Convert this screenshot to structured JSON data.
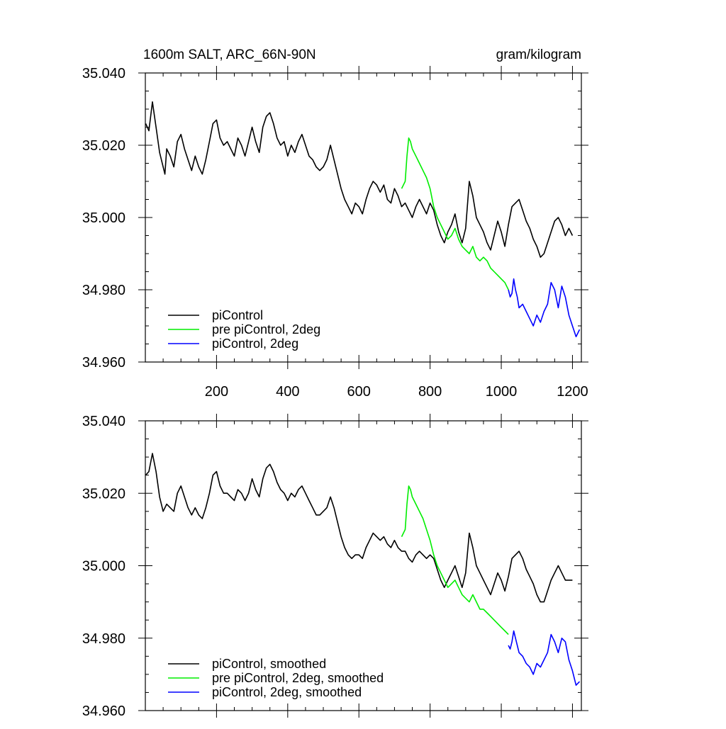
{
  "header": {
    "title": "1600m SALT, ARC_66N-90N",
    "units": "gram/kilogram"
  },
  "chart_data": [
    {
      "type": "line",
      "title": "1600m SALT, ARC_66N-90N",
      "units": "gram/kilogram",
      "xlim": [
        0,
        1225
      ],
      "ylim": [
        34.96,
        35.04
      ],
      "x_ticks": [
        200,
        400,
        600,
        800,
        1000,
        1200
      ],
      "x_tick_labels": [
        "200",
        "400",
        "600",
        "800",
        "1000",
        "1200"
      ],
      "y_ticks": [
        34.96,
        34.98,
        35.0,
        35.02,
        35.04
      ],
      "y_tick_labels": [
        "34.960",
        "34.980",
        "35.000",
        "35.020",
        "35.040"
      ],
      "legend_position": "bottom-left",
      "series": [
        {
          "name": "piControl",
          "color": "#000000",
          "x": [
            1,
            10,
            20,
            30,
            40,
            50,
            55,
            60,
            70,
            80,
            90,
            100,
            110,
            120,
            130,
            140,
            150,
            160,
            170,
            180,
            190,
            200,
            210,
            220,
            230,
            240,
            250,
            260,
            270,
            280,
            290,
            300,
            310,
            320,
            330,
            340,
            350,
            360,
            370,
            380,
            390,
            400,
            410,
            420,
            430,
            440,
            450,
            460,
            470,
            480,
            490,
            500,
            510,
            520,
            530,
            540,
            550,
            560,
            570,
            580,
            590,
            600,
            610,
            620,
            630,
            640,
            650,
            660,
            670,
            680,
            690,
            700,
            710,
            720,
            730,
            740,
            750,
            760,
            770,
            780,
            790,
            800,
            810,
            820,
            830,
            840,
            850,
            860,
            870,
            880,
            890,
            900,
            910,
            920,
            930,
            940,
            950,
            960,
            970,
            980,
            990,
            1000,
            1010,
            1020,
            1030,
            1040,
            1050,
            1060,
            1070,
            1080,
            1090,
            1100,
            1110,
            1120,
            1130,
            1140,
            1150,
            1160,
            1170,
            1180,
            1190,
            1200
          ],
          "y": [
            35.026,
            35.024,
            35.032,
            35.025,
            35.018,
            35.014,
            35.012,
            35.019,
            35.017,
            35.014,
            35.021,
            35.023,
            35.019,
            35.016,
            35.013,
            35.017,
            35.014,
            35.012,
            35.016,
            35.021,
            35.026,
            35.027,
            35.022,
            35.02,
            35.021,
            35.019,
            35.017,
            35.022,
            35.02,
            35.017,
            35.021,
            35.025,
            35.021,
            35.018,
            35.025,
            35.028,
            35.029,
            35.026,
            35.022,
            35.02,
            35.021,
            35.017,
            35.02,
            35.018,
            35.021,
            35.023,
            35.02,
            35.017,
            35.016,
            35.014,
            35.013,
            35.014,
            35.016,
            35.02,
            35.016,
            35.012,
            35.008,
            35.005,
            35.003,
            35.001,
            35.004,
            35.003,
            35.001,
            35.005,
            35.008,
            35.01,
            35.009,
            35.007,
            35.009,
            35.005,
            35.004,
            35.008,
            35.006,
            35.003,
            35.004,
            35.002,
            35.0,
            35.003,
            35.005,
            35.003,
            35.001,
            35.004,
            35.002,
            34.998,
            34.995,
            34.993,
            34.996,
            34.998,
            35.001,
            34.996,
            34.993,
            34.997,
            35.01,
            35.006,
            35.0,
            34.998,
            34.996,
            34.993,
            34.991,
            34.995,
            34.999,
            34.996,
            34.992,
            34.998,
            35.003,
            35.004,
            35.005,
            35.002,
            34.999,
            34.997,
            34.994,
            34.992,
            34.989,
            34.99,
            34.993,
            34.996,
            34.999,
            35.0,
            34.998,
            34.995,
            34.997,
            34.995
          ]
        },
        {
          "name": "pre piControl, 2deg",
          "color": "#00ee00",
          "x": [
            720,
            730,
            735,
            740,
            745,
            750,
            760,
            770,
            780,
            790,
            800,
            810,
            820,
            830,
            840,
            850,
            860,
            870,
            880,
            890,
            900,
            910,
            920,
            930,
            940,
            950,
            960,
            970,
            980,
            990,
            1000,
            1010,
            1020
          ],
          "y": [
            35.008,
            35.01,
            35.017,
            35.022,
            35.021,
            35.019,
            35.017,
            35.015,
            35.013,
            35.011,
            35.008,
            35.003,
            35.0,
            34.998,
            34.996,
            34.994,
            34.995,
            34.997,
            34.994,
            34.992,
            34.991,
            34.99,
            34.992,
            34.989,
            34.988,
            34.989,
            34.988,
            34.986,
            34.985,
            34.984,
            34.983,
            34.982,
            34.98
          ]
        },
        {
          "name": "piControl, 2deg",
          "color": "#0000ff",
          "x": [
            1020,
            1025,
            1030,
            1035,
            1040,
            1045,
            1050,
            1060,
            1070,
            1080,
            1090,
            1100,
            1110,
            1120,
            1130,
            1140,
            1150,
            1160,
            1170,
            1180,
            1190,
            1200,
            1210,
            1220
          ],
          "y": [
            34.98,
            34.978,
            34.979,
            34.983,
            34.98,
            34.978,
            34.975,
            34.976,
            34.974,
            34.972,
            34.97,
            34.973,
            34.971,
            34.974,
            34.976,
            34.982,
            34.98,
            34.975,
            34.981,
            34.978,
            34.973,
            34.97,
            34.967,
            34.969
          ]
        }
      ]
    },
    {
      "type": "line",
      "xlim": [
        0,
        1225
      ],
      "ylim": [
        34.96,
        35.04
      ],
      "x_ticks": [
        200,
        400,
        600,
        800,
        1000,
        1200
      ],
      "y_ticks": [
        34.96,
        34.98,
        35.0,
        35.02,
        35.04
      ],
      "y_tick_labels": [
        "34.960",
        "34.980",
        "35.000",
        "35.020",
        "35.040"
      ],
      "legend_position": "bottom-left",
      "series": [
        {
          "name": "piControl, smoothed",
          "color": "#000000",
          "x": [
            1,
            10,
            20,
            30,
            40,
            50,
            60,
            70,
            80,
            90,
            100,
            110,
            120,
            130,
            140,
            150,
            160,
            170,
            180,
            190,
            200,
            210,
            220,
            230,
            240,
            250,
            260,
            270,
            280,
            290,
            300,
            310,
            320,
            330,
            340,
            350,
            360,
            370,
            380,
            390,
            400,
            410,
            420,
            430,
            440,
            450,
            460,
            470,
            480,
            490,
            500,
            510,
            520,
            530,
            540,
            550,
            560,
            570,
            580,
            590,
            600,
            610,
            620,
            630,
            640,
            650,
            660,
            670,
            680,
            690,
            700,
            710,
            720,
            730,
            740,
            750,
            760,
            770,
            780,
            790,
            800,
            810,
            820,
            830,
            840,
            850,
            860,
            870,
            880,
            890,
            900,
            910,
            920,
            930,
            940,
            950,
            960,
            970,
            980,
            990,
            1000,
            1010,
            1020,
            1030,
            1040,
            1050,
            1060,
            1070,
            1080,
            1090,
            1100,
            1110,
            1120,
            1130,
            1140,
            1150,
            1160,
            1170,
            1180,
            1190,
            1200
          ],
          "y": [
            35.025,
            35.026,
            35.031,
            35.026,
            35.019,
            35.015,
            35.017,
            35.016,
            35.015,
            35.02,
            35.022,
            35.019,
            35.016,
            35.014,
            35.016,
            35.014,
            35.013,
            35.016,
            35.02,
            35.025,
            35.026,
            35.022,
            35.02,
            35.02,
            35.019,
            35.018,
            35.021,
            35.02,
            35.018,
            35.02,
            35.024,
            35.021,
            35.019,
            35.024,
            35.027,
            35.028,
            35.026,
            35.023,
            35.021,
            35.02,
            35.018,
            35.02,
            35.019,
            35.021,
            35.022,
            35.02,
            35.018,
            35.016,
            35.014,
            35.014,
            35.015,
            35.016,
            35.019,
            35.016,
            35.012,
            35.008,
            35.005,
            35.003,
            35.002,
            35.003,
            35.003,
            35.002,
            35.005,
            35.007,
            35.009,
            35.008,
            35.007,
            35.008,
            35.006,
            35.005,
            35.007,
            35.005,
            35.004,
            35.004,
            35.002,
            35.001,
            35.003,
            35.004,
            35.003,
            35.002,
            35.003,
            35.002,
            34.999,
            34.996,
            34.994,
            34.996,
            34.998,
            35.0,
            34.997,
            34.994,
            34.998,
            35.009,
            35.005,
            35.0,
            34.998,
            34.996,
            34.994,
            34.992,
            34.995,
            34.998,
            34.996,
            34.993,
            34.997,
            35.002,
            35.003,
            35.004,
            35.002,
            34.999,
            34.997,
            34.995,
            34.992,
            34.99,
            34.99,
            34.993,
            34.996,
            34.998,
            35.0,
            34.998,
            34.996,
            34.996,
            34.996
          ]
        },
        {
          "name": "pre piControl, 2deg, smoothed",
          "color": "#00ee00",
          "x": [
            720,
            730,
            735,
            740,
            745,
            750,
            760,
            770,
            780,
            790,
            800,
            810,
            820,
            830,
            840,
            850,
            860,
            870,
            880,
            890,
            900,
            910,
            920,
            930,
            940,
            950,
            960,
            970,
            980,
            990,
            1000,
            1010,
            1020
          ],
          "y": [
            35.008,
            35.01,
            35.017,
            35.022,
            35.021,
            35.019,
            35.017,
            35.015,
            35.013,
            35.01,
            35.007,
            35.003,
            35.0,
            34.998,
            34.996,
            34.994,
            34.995,
            34.996,
            34.994,
            34.992,
            34.991,
            34.99,
            34.992,
            34.99,
            34.988,
            34.988,
            34.987,
            34.986,
            34.985,
            34.984,
            34.983,
            34.982,
            34.981
          ]
        },
        {
          "name": "piControl, 2deg, smoothed",
          "color": "#0000ff",
          "x": [
            1020,
            1025,
            1030,
            1035,
            1040,
            1045,
            1050,
            1060,
            1070,
            1080,
            1090,
            1100,
            1110,
            1120,
            1130,
            1140,
            1150,
            1160,
            1170,
            1180,
            1190,
            1200,
            1210,
            1220
          ],
          "y": [
            34.978,
            34.977,
            34.979,
            34.982,
            34.98,
            34.978,
            34.976,
            34.975,
            34.973,
            34.972,
            34.97,
            34.973,
            34.972,
            34.974,
            34.976,
            34.981,
            34.979,
            34.976,
            34.98,
            34.979,
            34.974,
            34.971,
            34.967,
            34.968
          ]
        }
      ]
    }
  ]
}
